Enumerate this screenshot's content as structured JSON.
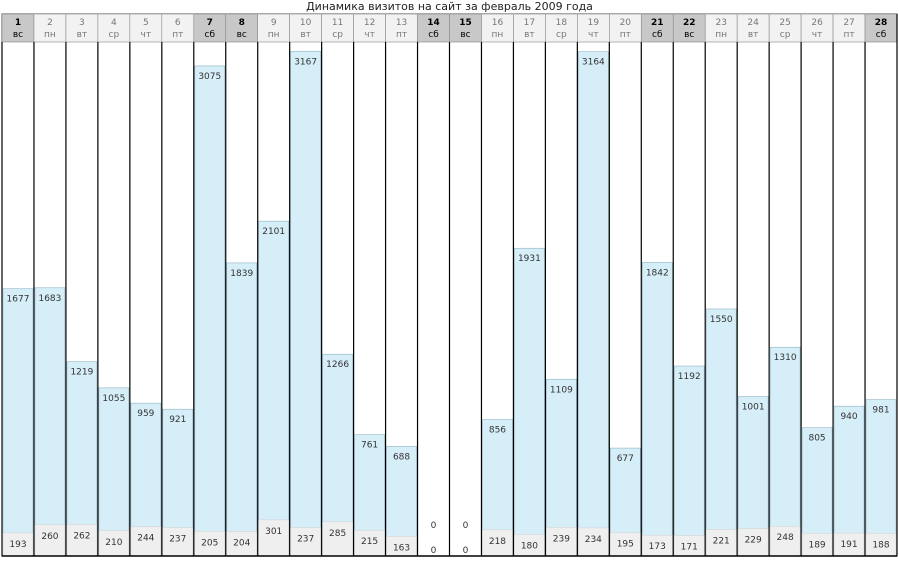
{
  "chart_data": {
    "type": "bar",
    "title": "Динамика визитов на сайт за февраль 2009 года",
    "categories": [
      "1",
      "2",
      "3",
      "4",
      "5",
      "6",
      "7",
      "8",
      "9",
      "10",
      "11",
      "12",
      "13",
      "14",
      "15",
      "16",
      "17",
      "18",
      "19",
      "20",
      "21",
      "22",
      "23",
      "24",
      "25",
      "26",
      "27",
      "28"
    ],
    "weekdays": [
      "вс",
      "пн",
      "вт",
      "ср",
      "чт",
      "пт",
      "сб",
      "вс",
      "пн",
      "вт",
      "ср",
      "чт",
      "пт",
      "сб",
      "вс",
      "пн",
      "вт",
      "ср",
      "чт",
      "пт",
      "сб",
      "вс",
      "пн",
      "вт",
      "ср",
      "чт",
      "пт",
      "сб"
    ],
    "weekend": [
      true,
      false,
      false,
      false,
      false,
      false,
      true,
      true,
      false,
      false,
      false,
      false,
      false,
      true,
      true,
      false,
      false,
      false,
      false,
      false,
      true,
      true,
      false,
      false,
      false,
      false,
      false,
      true
    ],
    "series": [
      {
        "values": [
          1677,
          1683,
          1219,
          1055,
          959,
          921,
          3075,
          1839,
          2101,
          3167,
          1266,
          761,
          688,
          0,
          0,
          856,
          1931,
          1109,
          3164,
          677,
          1842,
          1192,
          1550,
          1001,
          1310,
          805,
          940,
          981
        ]
      },
      {
        "values": [
          193,
          260,
          262,
          210,
          244,
          237,
          205,
          204,
          301,
          237,
          285,
          215,
          163,
          0,
          0,
          218,
          180,
          239,
          234,
          195,
          173,
          171,
          221,
          229,
          248,
          189,
          191,
          188
        ]
      }
    ],
    "ylim": [
      0,
      3200
    ],
    "colors": {
      "bar": "#d6eef8",
      "bar_border": "#8fb4c4",
      "base": "#efefef",
      "weekend_header": "#c8c8c8",
      "header": "#f2f2f2"
    }
  }
}
